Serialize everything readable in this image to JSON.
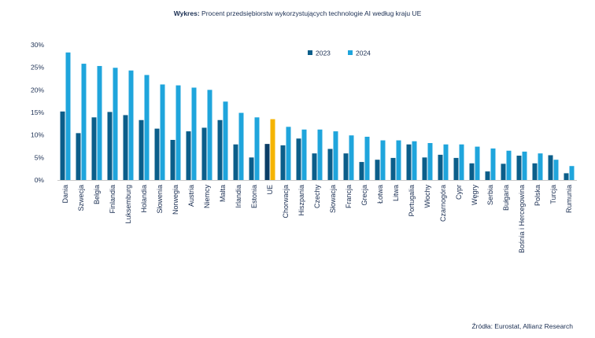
{
  "header": {
    "title_prefix": "Wykres:",
    "title_text": "Procent przedsiębiorstw wykorzystujących technologie AI według kraju UE"
  },
  "footer": {
    "source": "Źródła: Eurostat, Allianz Research"
  },
  "colors": {
    "series_2023": "#0b5e8a",
    "series_2024": "#1fa5dc",
    "highlight": "#f5b400",
    "text": "#1a2e52",
    "axis": "#c9c9c9"
  },
  "chart_data": {
    "type": "bar",
    "title": "Procent przedsiębiorstw wykorzystujących technologie AI według kraju UE",
    "xlabel": "",
    "ylabel": "",
    "ylim": [
      0,
      30
    ],
    "yticks": [
      "0%",
      "5%",
      "10%",
      "15%",
      "20%",
      "25%",
      "30%"
    ],
    "grid": false,
    "legend_position": "top-right",
    "highlight_category": "UE",
    "categories": [
      "Dania",
      "Szwecja",
      "Belgia",
      "Finlandia",
      "Luksemburg",
      "Holandia",
      "Słowenia",
      "Norwegia",
      "Austria",
      "Niemcy",
      "Malta",
      "Irlandia",
      "Estonia",
      "UE",
      "Chorwacja",
      "Hiszpania",
      "Czechy",
      "Słowacja",
      "Francja",
      "Grecja",
      "Łotwa",
      "Litwa",
      "Portugalia",
      "Włochy",
      "Czarnogóra",
      "Cypr",
      "Węgry",
      "Serbia",
      "Bułgaria",
      "Bośnia i Hercegowina",
      "Polska",
      "Turcja",
      "Rumunia"
    ],
    "series": [
      {
        "name": "2023",
        "values": [
          15.2,
          10.4,
          13.9,
          15.1,
          14.4,
          13.3,
          11.4,
          8.9,
          10.8,
          11.6,
          13.3,
          7.9,
          5.0,
          8.0,
          7.7,
          9.2,
          5.9,
          6.9,
          5.9,
          4.0,
          4.5,
          4.9,
          7.9,
          5.0,
          5.6,
          4.9,
          3.7,
          1.9,
          3.6,
          5.4,
          3.7,
          5.5,
          1.5
        ]
      },
      {
        "name": "2024",
        "values": [
          28.3,
          25.8,
          25.3,
          24.9,
          24.3,
          23.3,
          21.2,
          21.0,
          20.5,
          20.0,
          17.4,
          14.9,
          13.9,
          13.5,
          11.8,
          11.2,
          11.2,
          10.8,
          9.9,
          9.6,
          8.8,
          8.8,
          8.6,
          8.2,
          7.9,
          7.9,
          7.4,
          7.0,
          6.5,
          6.3,
          5.9,
          4.5,
          3.1
        ]
      }
    ]
  }
}
